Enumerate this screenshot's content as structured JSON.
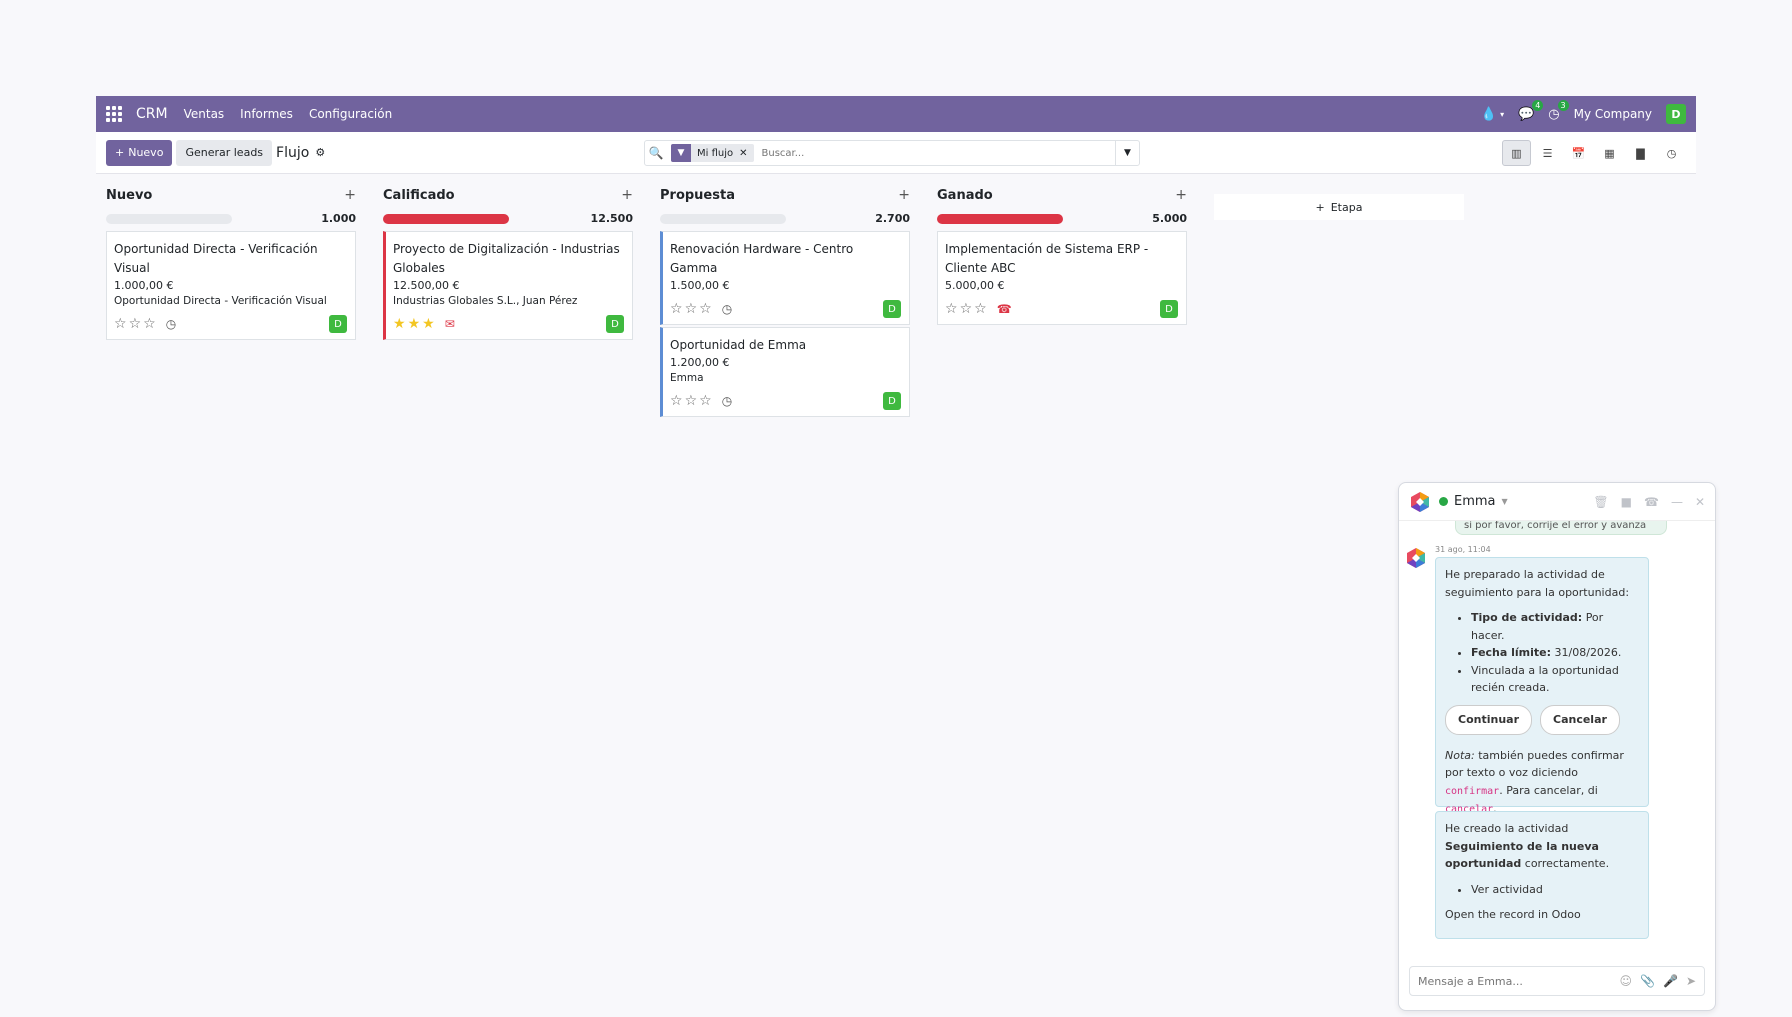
{
  "navbar": {
    "brand": "CRM",
    "menu": [
      "Ventas",
      "Informes",
      "Configuración"
    ],
    "messages_badge": "4",
    "activities_badge": "3",
    "company": "My Company",
    "user_initial": "D"
  },
  "control": {
    "new_label": "Nuevo",
    "generate_label": "Generar leads",
    "breadcrumb": "Flujo",
    "facet_label": "Mi flujo",
    "search_placeholder": "Buscar..."
  },
  "columns": [
    {
      "title": "Nuevo",
      "total": "1.000",
      "progress_color": "#e7e9ed",
      "cards": [
        {
          "title": "Oportunidad Directa - Verificación Visual",
          "amount": "1.000,00 €",
          "partner": "Oportunidad Directa - Verificación Visual",
          "stars": 0,
          "activity": "clock",
          "avatar": "D"
        }
      ]
    },
    {
      "title": "Calificado",
      "total": "12.500",
      "progress_color": "#dc3545",
      "cards": [
        {
          "title": "Proyecto de Digitalización - Industrias Globales",
          "amount": "12.500,00 €",
          "partner": "Industrias Globales S.L., Juan Pérez",
          "stars": 3,
          "activity": "envelope",
          "avatar": "D"
        }
      ]
    },
    {
      "title": "Propuesta",
      "total": "2.700",
      "progress_color": "#e7e9ed",
      "cards": [
        {
          "title": "Renovación Hardware - Centro Gamma",
          "amount": "1.500,00 €",
          "partner": "",
          "stars": 0,
          "activity": "clock",
          "avatar": "D"
        },
        {
          "title": "Oportunidad de Emma",
          "amount": "1.200,00 €",
          "partner": "Emma",
          "stars": 0,
          "activity": "clock",
          "avatar": "D"
        }
      ]
    },
    {
      "title": "Ganado",
      "total": "5.000",
      "progress_color": "#dc3545",
      "cards": [
        {
          "title": "Implementación de Sistema ERP - Cliente ABC",
          "amount": "5.000,00 €",
          "partner": "",
          "stars": 0,
          "activity": "phone",
          "avatar": "D"
        }
      ]
    }
  ],
  "add_stage_label": "Etapa",
  "chat": {
    "name": "Emma",
    "previous_text": "si por favor, corrije el error y avanza",
    "date": "31 ago, 11:04",
    "msg1_intro": "He preparado la actividad de seguimiento para la oportunidad:",
    "msg1_items": [
      {
        "label": "Tipo de actividad:",
        "value": "Por hacer."
      },
      {
        "label": "Fecha límite:",
        "value": "31/08/2026."
      },
      {
        "label": "",
        "value": "Vinculada a la oportunidad recién creada."
      }
    ],
    "continue_label": "Continuar",
    "cancel_label": "Cancelar",
    "note_label": "Nota:",
    "note_text_1": "también puedes confirmar por texto o voz diciendo",
    "confirm_word": "confirmar",
    "note_text_2": "Para cancelar, di",
    "cancel_word": "cancelar",
    "msg2_prefix": "He creado la actividad",
    "msg2_bold": "Seguimiento de la nueva oportunidad",
    "msg2_suffix": "correctamente.",
    "msg2_link": "Ver actividad",
    "msg2_footer": "Open the record in Odoo",
    "composer_placeholder": "Mensaje a Emma..."
  }
}
